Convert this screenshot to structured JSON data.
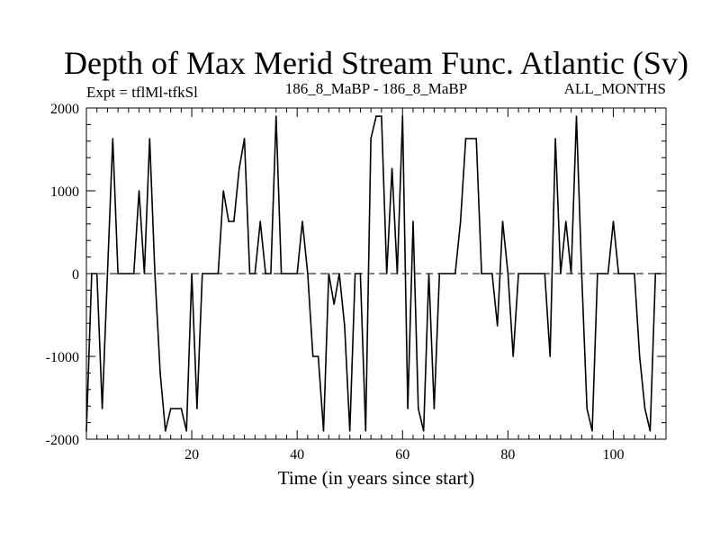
{
  "chart_data": {
    "type": "line",
    "title": "Depth of Max Merid Stream Func. Atlantic (Sv)",
    "subtitle_left": "Expt = tflMl-tfkSl",
    "subtitle_center": "186_8_MaBP - 186_8_MaBP",
    "subtitle_right": "ALL_MONTHS",
    "xlabel": "Time (in years since start)",
    "ylabel": "",
    "xlim": [
      0,
      110
    ],
    "ylim": [
      -2000,
      2000
    ],
    "xticks": [
      20,
      40,
      60,
      80,
      100
    ],
    "yticks": [
      -2000,
      -1000,
      0,
      1000,
      2000
    ],
    "reference_line": 0,
    "series": [
      {
        "name": "Depth of Max Merid Stream Func.",
        "x": [
          0,
          1,
          2,
          3,
          4,
          5,
          6,
          7,
          8,
          9,
          10,
          11,
          12,
          13,
          14,
          15,
          16,
          17,
          18,
          19,
          20,
          21,
          22,
          23,
          24,
          25,
          26,
          27,
          28,
          29,
          30,
          31,
          32,
          33,
          34,
          35,
          36,
          37,
          38,
          39,
          40,
          41,
          42,
          43,
          44,
          45,
          46,
          47,
          48,
          49,
          50,
          51,
          52,
          53,
          54,
          55,
          56,
          57,
          58,
          59,
          60,
          61,
          62,
          63,
          64,
          65,
          66,
          67,
          68,
          69,
          70,
          71,
          72,
          73,
          74,
          75,
          76,
          77,
          78,
          79,
          80,
          81,
          82,
          83,
          84,
          85,
          86,
          87,
          88,
          89,
          90,
          91,
          92,
          93,
          94,
          95,
          96,
          97,
          98,
          99,
          100,
          101,
          102,
          103,
          104,
          105,
          106,
          107,
          108,
          109
        ],
        "y": [
          -1900,
          0,
          0,
          -1630,
          0,
          1630,
          0,
          0,
          0,
          0,
          1000,
          0,
          1630,
          0,
          -1200,
          -1900,
          -1630,
          -1630,
          -1630,
          -1900,
          0,
          -1630,
          0,
          0,
          0,
          0,
          1000,
          630,
          630,
          1270,
          1630,
          0,
          0,
          630,
          0,
          0,
          1900,
          0,
          0,
          0,
          0,
          630,
          0,
          -1000,
          -1000,
          -1900,
          0,
          -370,
          0,
          -630,
          -1900,
          0,
          0,
          -1900,
          1630,
          1900,
          1900,
          0,
          1270,
          0,
          1900,
          -1630,
          630,
          -1630,
          -1900,
          0,
          -1630,
          0,
          0,
          0,
          0,
          630,
          1630,
          1630,
          1630,
          0,
          0,
          0,
          -630,
          630,
          0,
          -1000,
          0,
          0,
          0,
          0,
          0,
          0,
          -1000,
          1630,
          0,
          630,
          0,
          1900,
          0,
          -1630,
          -1900,
          0,
          0,
          0,
          630,
          0,
          0,
          0,
          0,
          -1000,
          -1630,
          -1900,
          0,
          0
        ]
      }
    ]
  }
}
